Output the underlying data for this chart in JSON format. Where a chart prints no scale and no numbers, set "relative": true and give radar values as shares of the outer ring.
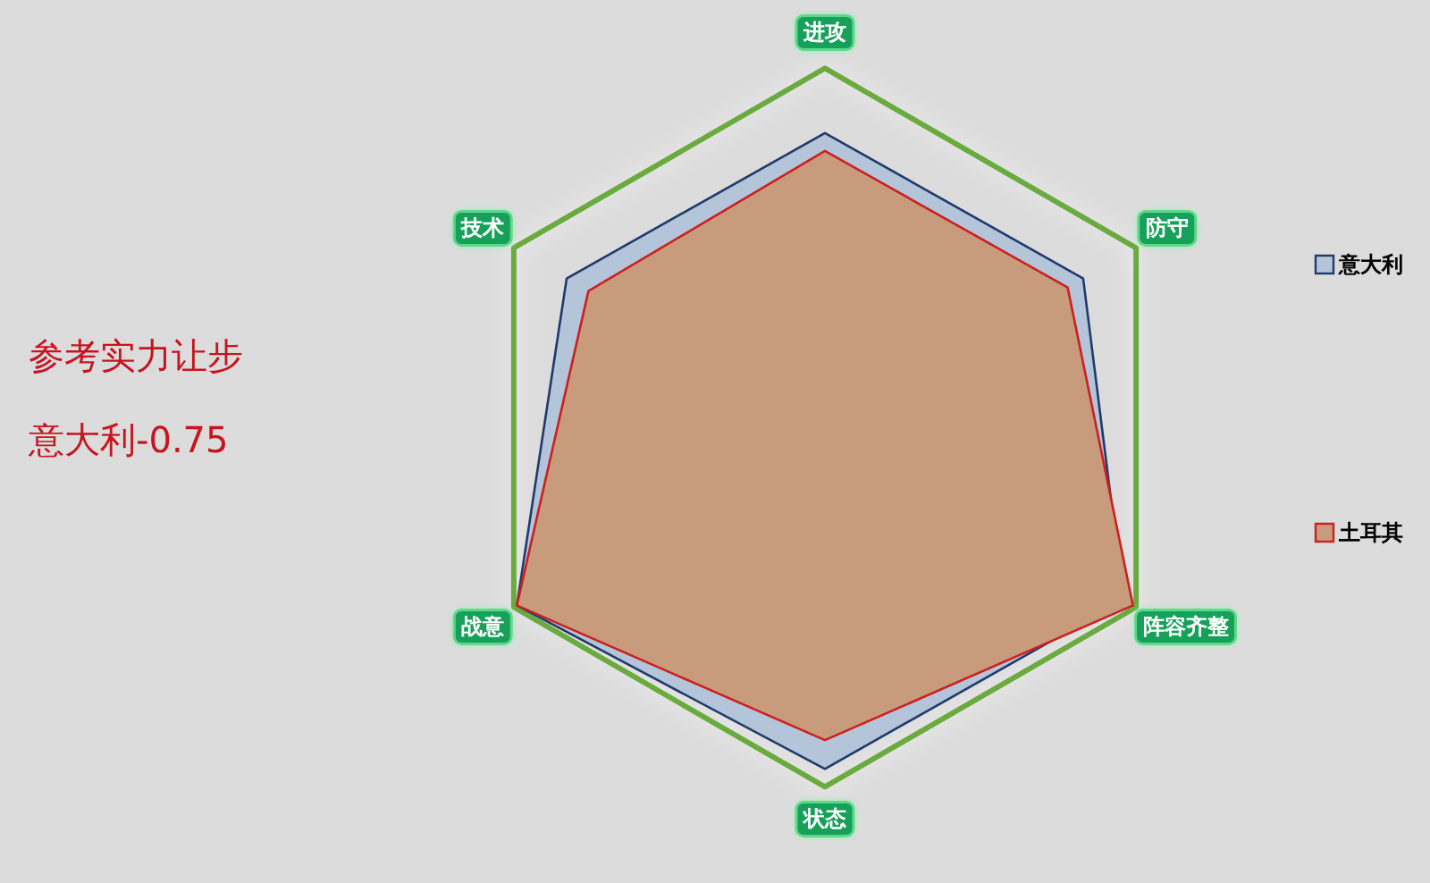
{
  "chart_data": {
    "type": "radar",
    "relative": true,
    "categories": [
      "进攻",
      "防守",
      "阵容齐整",
      "状态",
      "战意",
      "技术"
    ],
    "series": [
      {
        "name": "意大利",
        "color": "#b4c5d9",
        "values": [
          0.82,
          0.83,
          0.96,
          0.95,
          0.99,
          0.83
        ]
      },
      {
        "name": "土耳其",
        "color": "#c99b7d",
        "values": [
          0.77,
          0.78,
          0.99,
          0.87,
          0.99,
          0.76
        ]
      }
    ],
    "annotations": [
      "参考实力让步",
      "意大利-0.75"
    ],
    "legend": "right"
  }
}
